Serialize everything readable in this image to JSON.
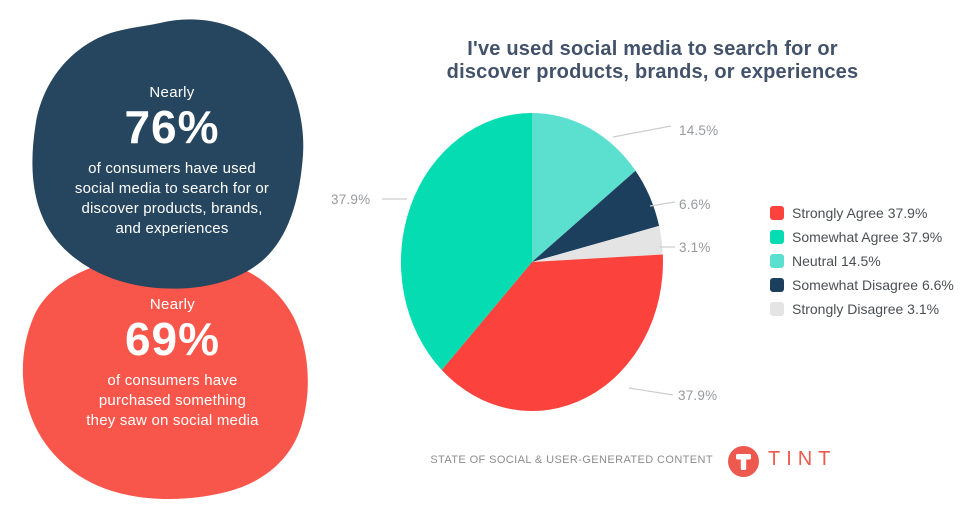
{
  "page": {
    "background": "#ffffff"
  },
  "stats": {
    "used_social": {
      "prefix": "Nearly",
      "value": "76%",
      "desc_lines": [
        "of consumers have used",
        "social media to search for or",
        "discover products, brands,",
        "and experiences"
      ],
      "color": "#264660"
    },
    "purchased": {
      "prefix": "Nearly",
      "value": "69%",
      "desc_lines": [
        "of consumers have",
        "purchased something",
        "they saw on social media"
      ],
      "color": "#F9564B"
    }
  },
  "chart": {
    "title_line1": "I've used social media to search for or",
    "title_line2": "discover products, brands, or experiences",
    "title_color": "#42526B"
  },
  "chart_data": {
    "type": "pie",
    "title": "I've used social media to search for or discover products, brands, or experiences",
    "labels": [
      "Strongly Agree",
      "Somewhat Agree",
      "Neutral",
      "Somewhat Disagree",
      "Strongly Disagree"
    ],
    "values": [
      37.9,
      37.9,
      14.5,
      6.6,
      3.1
    ],
    "colors": [
      "#FB423C",
      "#05DCB2",
      "#5BE0D0",
      "#1D3F5E",
      "#E4E4E4"
    ],
    "slice_order": [
      2,
      3,
      4,
      0,
      1
    ],
    "start_angle_deg": 0,
    "direction": "clockwise",
    "legend_position": "right",
    "callout_labels": [
      "14.5%",
      "6.6%",
      "3.1%",
      "37.9%",
      "37.9%"
    ],
    "callout_color": "#97999D"
  },
  "footer": {
    "source": "STATE OF SOCIAL & USER-GENERATED CONTENT",
    "brand": "TINT",
    "brand_color": "#ED5A50"
  }
}
